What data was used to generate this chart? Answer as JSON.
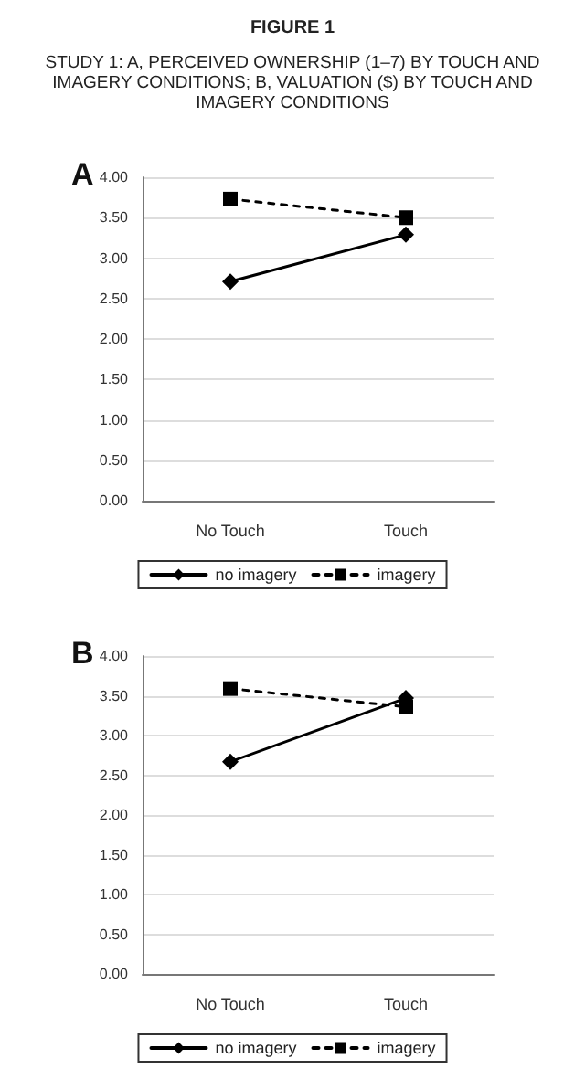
{
  "chart_data": [
    {
      "type": "line",
      "title": "A",
      "annotations": [
        "FIGURE 1",
        "STUDY 1: A, PERCEIVED OWNERSHIP (1–7) BY TOUCH AND IMAGERY CONDITIONS; B, VALUATION ($) BY TOUCH AND IMAGERY CONDITIONS"
      ],
      "categories": [
        "No Touch",
        "Touch"
      ],
      "series": [
        {
          "name": "no imagery",
          "color": "#000000",
          "values": [
            2.71,
            3.29
          ],
          "marker": "diamond",
          "line_style": "solid"
        },
        {
          "name": "imagery",
          "color": "#000000",
          "values": [
            3.73,
            3.5
          ],
          "marker": "square",
          "line_style": "dashed"
        }
      ],
      "ylim": [
        0,
        4
      ],
      "yticks": [
        {
          "value": 0,
          "label": "0.00"
        },
        {
          "value": 0.5,
          "label": "0.50"
        },
        {
          "value": 1,
          "label": "1.00"
        },
        {
          "value": 1.5,
          "label": "1.50"
        },
        {
          "value": 2,
          "label": "2.00"
        },
        {
          "value": 2.5,
          "label": "2.50"
        },
        {
          "value": 3,
          "label": "3.00"
        },
        {
          "value": 3.5,
          "label": "3.50"
        },
        {
          "value": 4,
          "label": "4.00"
        }
      ],
      "grid": "y",
      "legend": "bottom"
    },
    {
      "type": "line",
      "title": "B",
      "categories": [
        "No Touch",
        "Touch"
      ],
      "series": [
        {
          "name": "no imagery",
          "color": "#000000",
          "values": [
            2.67,
            3.47
          ],
          "marker": "diamond",
          "line_style": "solid"
        },
        {
          "name": "imagery",
          "color": "#000000",
          "values": [
            3.59,
            3.36
          ],
          "marker": "square",
          "line_style": "dashed"
        }
      ],
      "ylim": [
        0,
        4
      ],
      "yticks": [
        {
          "value": 0,
          "label": "0.00"
        },
        {
          "value": 0.5,
          "label": "0.50"
        },
        {
          "value": 1,
          "label": "1.00"
        },
        {
          "value": 1.5,
          "label": "1.50"
        },
        {
          "value": 2,
          "label": "2.00"
        },
        {
          "value": 2.5,
          "label": "2.50"
        },
        {
          "value": 3,
          "label": "3.00"
        },
        {
          "value": 3.5,
          "label": "3.50"
        },
        {
          "value": 4,
          "label": "4.00"
        }
      ],
      "grid": "y",
      "legend": "bottom"
    }
  ]
}
